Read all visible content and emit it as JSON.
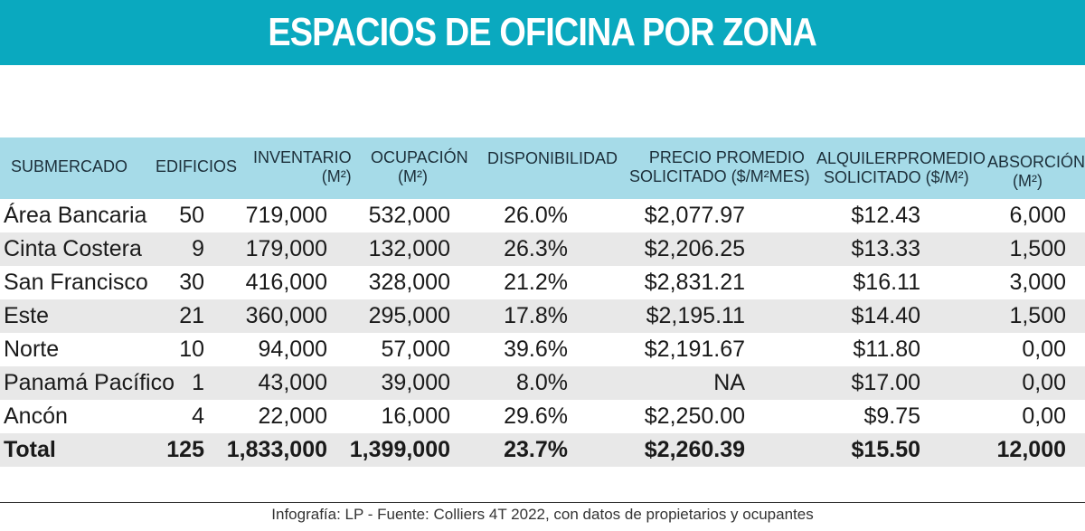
{
  "title": "ESPACIOS DE OFICINA POR ZONA",
  "colors": {
    "banner": "#0aa9bf",
    "header_row": "#a6dbe8",
    "alt_row": "#e8e8e8"
  },
  "table": {
    "headers": [
      {
        "l1": "SUBMERCADO",
        "l2": ""
      },
      {
        "l1": "EDIFICIOS",
        "l2": ""
      },
      {
        "l1": "INVENTARIO",
        "l2": "(M²)"
      },
      {
        "l1": "OCUPACIÓN",
        "l2": "(M²)"
      },
      {
        "l1": "DISPONIBILIDAD",
        "l2": ""
      },
      {
        "l1": "PRECIO PROMEDIO",
        "l2": "SOLICITADO ($/M²MES)"
      },
      {
        "l1": "ALQUILERPROMEDIO",
        "l2": "SOLICITADO ($/M²)"
      },
      {
        "l1": "ABSORCIÓN",
        "l2": "(M²)"
      }
    ],
    "rows": [
      [
        "Área Bancaria",
        "50",
        "719,000",
        "532,000",
        "26.0%",
        "$2,077.97",
        "$12.43",
        "6,000"
      ],
      [
        "Cinta Costera",
        "9",
        "179,000",
        "132,000",
        "26.3%",
        "$2,206.25",
        "$13.33",
        "1,500"
      ],
      [
        "San Francisco",
        "30",
        "416,000",
        "328,000",
        "21.2%",
        "$2,831.21",
        "$16.11",
        "3,000"
      ],
      [
        "Este",
        "21",
        "360,000",
        "295,000",
        "17.8%",
        "$2,195.11",
        "$14.40",
        "1,500"
      ],
      [
        "Norte",
        "10",
        "94,000",
        "57,000",
        "39.6%",
        "$2,191.67",
        "$11.80",
        "0,00"
      ],
      [
        "Panamá Pacífico",
        "1",
        "43,000",
        "39,000",
        "8.0%",
        "NA",
        "$17.00",
        "0,00"
      ],
      [
        "Ancón",
        "4",
        "22,000",
        "16,000",
        "29.6%",
        "$2,250.00",
        "$9.75",
        "0,00"
      ]
    ],
    "total": [
      "Total",
      "125",
      "1,833,000",
      "1,399,000",
      "23.7%",
      "$2,260.39",
      "$15.50",
      "12,000"
    ]
  },
  "credit": "Infografía: LP - Fuente: Colliers 4T 2022, con datos de propietarios y ocupantes"
}
